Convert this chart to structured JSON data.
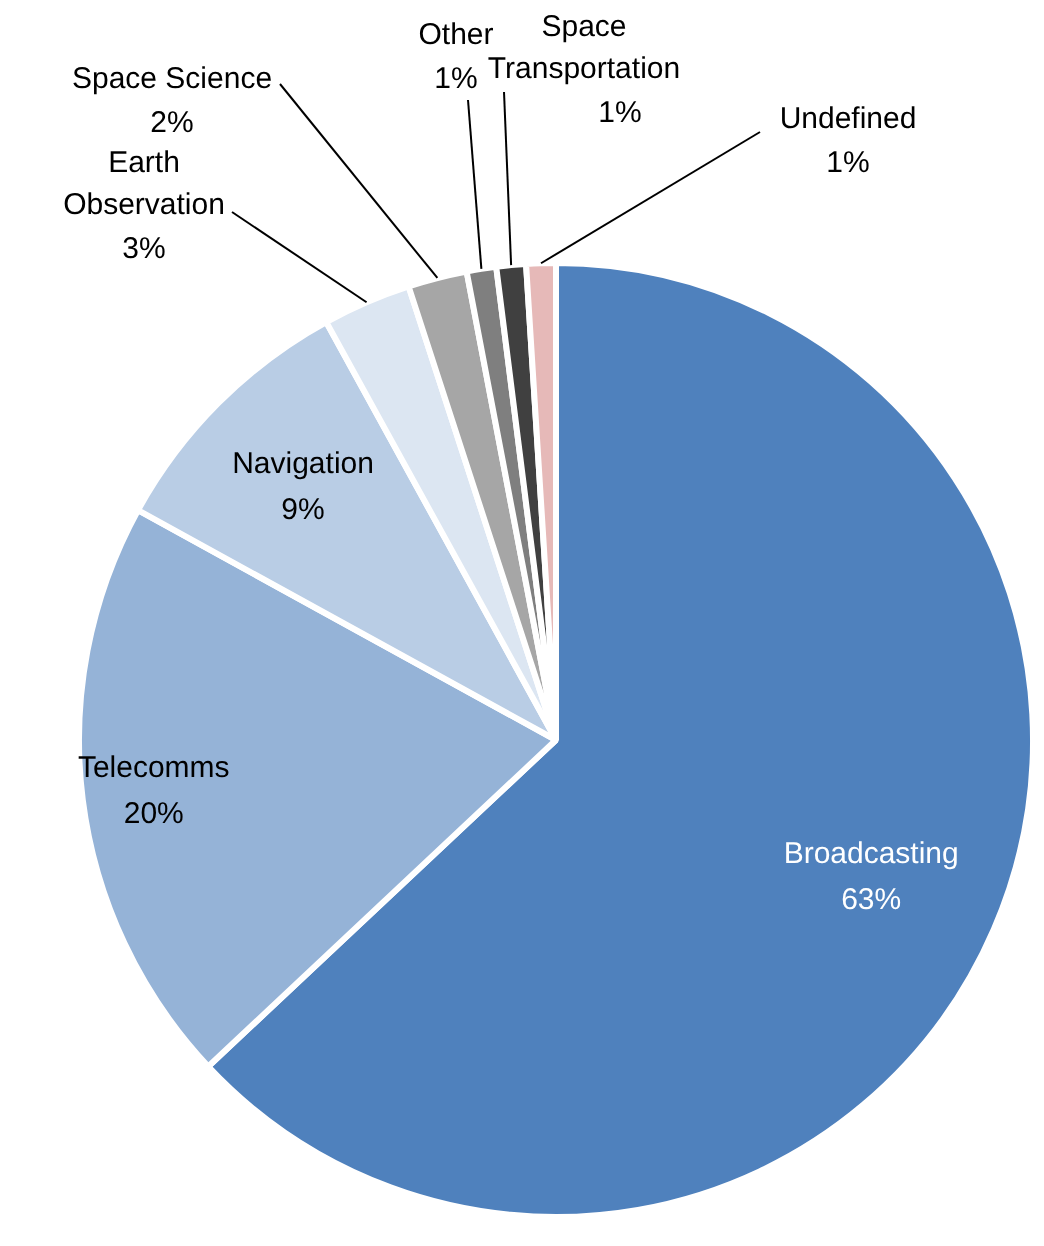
{
  "chart_data": {
    "type": "pie",
    "categories": [
      "Broadcasting",
      "Telecomms",
      "Navigation",
      "Earth Observation",
      "Space Science",
      "Other",
      "Space Transportation",
      "Undefined"
    ],
    "values": [
      63,
      20,
      9,
      3,
      2,
      1,
      1,
      1
    ],
    "value_labels": [
      "63%",
      "20%",
      "9%",
      "3%",
      "2%",
      "1%",
      "1%",
      "1%"
    ],
    "colors": [
      "#4f81bd",
      "#95b3d7",
      "#b9cde5",
      "#dce6f2",
      "#a6a6a6",
      "#7f7f7f",
      "#404040",
      "#e6b9b8"
    ],
    "legend": false
  }
}
